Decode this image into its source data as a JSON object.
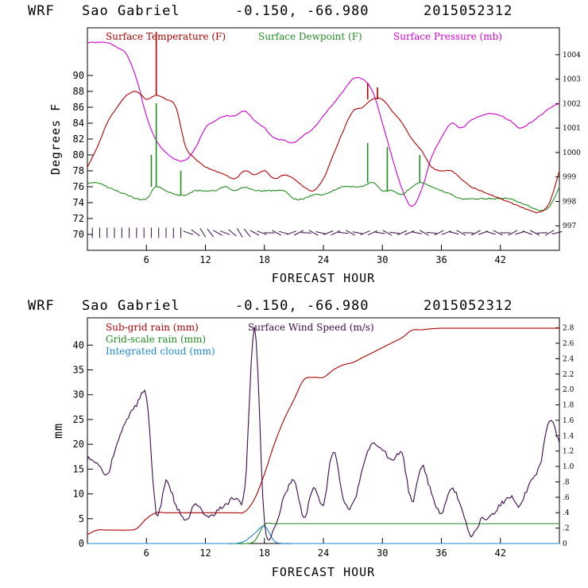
{
  "meteogram": {
    "station": "Sao Gabriel",
    "model": "WRF",
    "coords": "-0.150, -66.980",
    "init": "2015052312"
  },
  "colors": {
    "temperature": "#b00000",
    "dewpoint": "#228b22",
    "pressure": "#d000d0",
    "subgrid_rain": "#b00000",
    "gridscale_rain": "#228b22",
    "cloud": "#1e88d0",
    "wind": "#3a0a4a"
  },
  "chart_data": [
    {
      "type": "line",
      "title": "WRF  Sao Gabriel   -0.150, -66.980  2015052312",
      "xlabel": "FORECAST HOUR",
      "ylabel": "Degrees F",
      "xlim": [
        0,
        48
      ],
      "ylim": [
        68,
        96
      ],
      "y_ticks": [
        "70",
        "72",
        "74",
        "76",
        "78",
        "80",
        "82",
        "84",
        "86",
        "88",
        "90"
      ],
      "x_ticks": [
        "6",
        "12",
        "18",
        "24",
        "30",
        "36",
        "42"
      ],
      "y2_ticks": [
        "997",
        "998",
        "999",
        "1000",
        "1001",
        "1002",
        "1003",
        "1004"
      ],
      "y2lim": [
        996,
        1005.1
      ],
      "legend": [
        "Surface Temperature (F)",
        "Surface Dewpoint (F)",
        "Surface Pressure (mb)"
      ],
      "x": [
        0,
        1,
        2,
        3,
        4,
        5,
        6,
        7,
        8,
        9,
        10,
        11,
        12,
        13,
        14,
        15,
        16,
        17,
        18,
        19,
        20,
        21,
        22,
        23,
        24,
        25,
        26,
        27,
        28,
        29,
        30,
        31,
        32,
        33,
        34,
        35,
        36,
        37,
        38,
        39,
        40,
        41,
        42,
        43,
        44,
        45,
        46,
        47,
        48
      ],
      "series": [
        {
          "name": "Surface Temperature (F)",
          "values": [
            78.5,
            81,
            84,
            86,
            87.5,
            88,
            87,
            87.5,
            87,
            86,
            81,
            79.5,
            78.5,
            78,
            77.5,
            77,
            78,
            77.5,
            78,
            77,
            77.5,
            77,
            76,
            75.5,
            77,
            80,
            83,
            85.5,
            86,
            87,
            87,
            85.5,
            84,
            82,
            80.5,
            78.5,
            78,
            78,
            77,
            76,
            75.5,
            75,
            74.5,
            74,
            73.5,
            73,
            72.8,
            74,
            78
          ]
        },
        {
          "name": "Surface Dewpoint (F)",
          "values": [
            76.5,
            76.5,
            76,
            75.5,
            75,
            74.5,
            74.5,
            76,
            75.5,
            75,
            75,
            75.5,
            75.5,
            75.5,
            76,
            75.5,
            76,
            75.5,
            75.5,
            75.5,
            75.5,
            74.5,
            74.5,
            75,
            75,
            75.5,
            76,
            76,
            76,
            76.5,
            75.5,
            75.5,
            75,
            76,
            76.5,
            76,
            75.5,
            75,
            74.5,
            74.5,
            74.5,
            74.5,
            74.5,
            74.5,
            74,
            73.5,
            73,
            73.5,
            76
          ]
        },
        {
          "name": "Surface Pressure (mb)",
          "values": [
            1004.5,
            1004.5,
            1004.5,
            1004.3,
            1004,
            1003,
            1001.5,
            1000.5,
            1000,
            999.7,
            999.7,
            1000.2,
            1001,
            1001.3,
            1001.5,
            1001.5,
            1001.7,
            1001.3,
            1001,
            1000.6,
            1000.5,
            1000.4,
            1000.7,
            1001,
            1001.5,
            1002,
            1002.5,
            1003,
            1003,
            1002.5,
            1001.2,
            999.8,
            998.5,
            997.8,
            998.5,
            999.8,
            1000.6,
            1001.2,
            1001,
            1001.3,
            1001.5,
            1001.6,
            1001.5,
            1001.3,
            1001,
            1001.2,
            1001.5,
            1001.8,
            1002
          ]
        }
      ],
      "spikes": [
        {
          "series": "Surface Temperature (F)",
          "x": 7.0,
          "value": 95.5
        },
        {
          "series": "Surface Temperature (F)",
          "x": 28.5,
          "value": 89
        },
        {
          "series": "Surface Temperature (F)",
          "x": 29.5,
          "value": 88.5
        },
        {
          "series": "Surface Dewpoint (F)",
          "x": 7.0,
          "value": 86.5
        },
        {
          "series": "Surface Dewpoint (F)",
          "x": 6.5,
          "value": 80
        },
        {
          "series": "Surface Dewpoint (F)",
          "x": 9.5,
          "value": 78
        },
        {
          "series": "Surface Dewpoint (F)",
          "x": 28.5,
          "value": 81.5
        },
        {
          "series": "Surface Dewpoint (F)",
          "x": 30.5,
          "value": 81
        },
        {
          "series": "Surface Dewpoint (F)",
          "x": 33.8,
          "value": 80
        }
      ]
    },
    {
      "type": "line",
      "title": "WRF  Sao Gabriel   -0.150, -66.980  2015052312",
      "xlabel": "FORECAST HOUR",
      "ylabel": "mm",
      "xlim": [
        0,
        48
      ],
      "ylim": [
        0,
        45.5
      ],
      "y_ticks": [
        "0",
        "5",
        "10",
        "15",
        "20",
        "25",
        "30",
        "35",
        "40"
      ],
      "x_ticks": [
        "6",
        "12",
        "18",
        "24",
        "30",
        "36",
        "42"
      ],
      "y2_ticks": [
        "0",
        ".2",
        ".4",
        ".6",
        ".8",
        "1.0",
        "1.2",
        "1.4",
        "1.6",
        "1.8",
        "2.0",
        "2.2",
        "2.4",
        "2.6",
        "2.8"
      ],
      "y2lim": [
        0,
        2.93
      ],
      "legend": [
        "Sub-grid rain (mm)",
        "Surface Wind Speed (m/s)",
        "Grid-scale rain (mm)",
        "Integrated cloud (mm)"
      ],
      "x": [
        0,
        1,
        2,
        3,
        4,
        5,
        6,
        7,
        8,
        9,
        10,
        11,
        12,
        13,
        14,
        15,
        16,
        17,
        18,
        19,
        20,
        21,
        22,
        23,
        24,
        25,
        26,
        27,
        28,
        29,
        30,
        31,
        32,
        33,
        34,
        35,
        36,
        37,
        38,
        39,
        40,
        41,
        42,
        43,
        44,
        45,
        46,
        47,
        48
      ],
      "series": [
        {
          "name": "Sub-grid rain (mm)",
          "values": [
            1.8,
            2.7,
            2.7,
            2.7,
            2.7,
            3,
            5,
            6.2,
            6.2,
            6.2,
            6.2,
            6.2,
            6.2,
            6.2,
            6.2,
            6.2,
            6.4,
            9,
            14,
            20,
            25,
            29,
            33,
            33.5,
            33.5,
            35,
            36,
            36.5,
            37.5,
            38.5,
            39.5,
            40.5,
            41.5,
            43,
            43.1,
            43.3,
            43.4,
            43.4,
            43.4,
            43.4,
            43.4,
            43.4,
            43.4,
            43.4,
            43.4,
            43.4,
            43.4,
            43.4,
            43.4
          ]
        },
        {
          "name": "Grid-scale rain (mm)",
          "values": [
            0,
            0,
            0,
            0,
            0,
            0,
            0,
            0,
            0,
            0,
            0,
            0,
            0,
            0,
            0,
            0,
            0,
            0.5,
            3.8,
            4,
            4,
            4,
            4,
            4,
            4,
            4,
            4,
            4,
            4,
            4,
            4,
            4,
            4,
            4,
            4,
            4,
            4,
            4,
            4,
            4,
            4,
            4,
            4,
            4,
            4,
            4,
            4,
            4,
            4
          ]
        },
        {
          "name": "Integrated cloud (mm)",
          "values": [
            0,
            0,
            0,
            0,
            0,
            0,
            0,
            0,
            0,
            0,
            0,
            0,
            0,
            0,
            0,
            0,
            0.5,
            2,
            3.5,
            0.5,
            0,
            0,
            0,
            0,
            0,
            0,
            0,
            0,
            0,
            0,
            0,
            0,
            0,
            0,
            0,
            0,
            0,
            0,
            0,
            0,
            0,
            0,
            0,
            0,
            0,
            0,
            0,
            0,
            0
          ]
        },
        {
          "name": "Surface Wind Speed (m/s)",
          "values": [
            1.1,
            1.05,
            0.9,
            1.3,
            1.6,
            1.8,
            1.9,
            0.4,
            0.8,
            0.5,
            0.3,
            0.5,
            0.35,
            0.4,
            0.5,
            0.6,
            0.7,
            2.8,
            0.3,
            0.2,
            0.6,
            0.8,
            0.35,
            0.7,
            0.5,
            1.2,
            0.6,
            0.5,
            1.0,
            1.3,
            1.2,
            1.1,
            1.15,
            0.55,
            1.0,
            0.65,
            0.4,
            0.7,
            0.5,
            0.1,
            0.3,
            0.35,
            0.5,
            0.6,
            0.5,
            0.8,
            1.0,
            1.6,
            1.3
          ]
        }
      ]
    }
  ]
}
